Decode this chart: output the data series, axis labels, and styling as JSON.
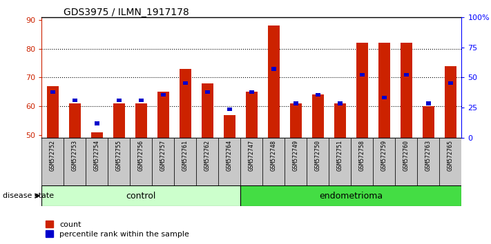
{
  "title": "GDS3975 / ILMN_1917178",
  "samples": [
    "GSM572752",
    "GSM572753",
    "GSM572754",
    "GSM572755",
    "GSM572756",
    "GSM572757",
    "GSM572761",
    "GSM572762",
    "GSM572764",
    "GSM572747",
    "GSM572748",
    "GSM572749",
    "GSM572750",
    "GSM572751",
    "GSM572758",
    "GSM572759",
    "GSM572760",
    "GSM572763",
    "GSM572765"
  ],
  "red_values": [
    67,
    61,
    51,
    61,
    61,
    65,
    73,
    68,
    57,
    65,
    88,
    61,
    64,
    61,
    82,
    82,
    82,
    60,
    74
  ],
  "blue_values": [
    65,
    62,
    54,
    62,
    62,
    64,
    68,
    65,
    59,
    65,
    73,
    61,
    64,
    61,
    71,
    63,
    71,
    61,
    68
  ],
  "red_color": "#cc2200",
  "blue_color": "#0000cc",
  "ylim_left": [
    49,
    91
  ],
  "ylim_right": [
    0,
    100
  ],
  "yticks_left": [
    50,
    60,
    70,
    80,
    90
  ],
  "yticks_right_vals": [
    0,
    25,
    50,
    75,
    100
  ],
  "yticks_right_labels": [
    "0",
    "25",
    "50",
    "75",
    "100%"
  ],
  "control_count": 9,
  "endometrioma_count": 10,
  "control_label": "control",
  "endometrioma_label": "endometrioma",
  "disease_state_label": "disease state",
  "legend_count_label": "count",
  "legend_percentile_label": "percentile rank within the sample",
  "bar_width": 0.55,
  "group_bg_control": "#ccffcc",
  "group_bg_endometrioma": "#44dd44",
  "bar_bottom": 49,
  "tick_bg_color": "#c8c8c8",
  "plot_bg_color": "#ffffff"
}
